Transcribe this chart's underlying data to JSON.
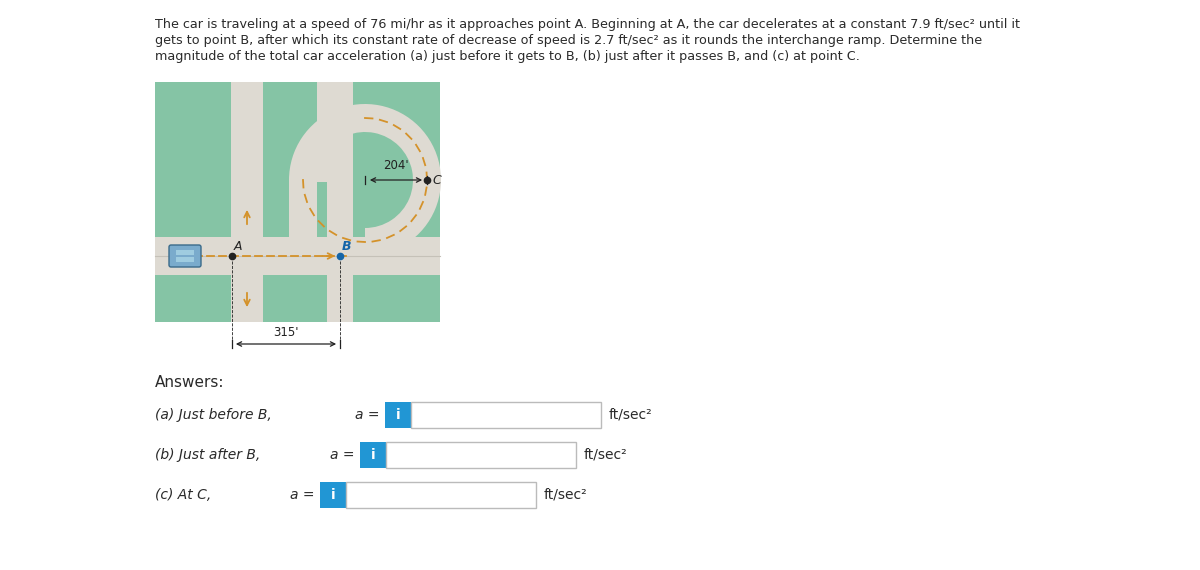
{
  "title_line1": "The car is traveling at a speed of 76 mi/hr as it approaches point A. Beginning at A, the car decelerates at a constant 7.9 ft/sec² until it",
  "title_line2": "gets to point B, after which its constant rate of decrease of speed is 2.7 ft/sec² as it rounds the interchange ramp. Determine the",
  "title_line3": "magnitude of the total car acceleration (a) just before it gets to B, (b) just after it passes B, and (c) at point C.",
  "green_color": "#85c4a5",
  "road_color": "#dedad2",
  "road_stripe": "#c5c1b8",
  "arrow_color": "#d4922a",
  "button_color": "#2196d4",
  "text_dark": "#2a2a2a",
  "text_medium": "#444444",
  "answer_labels": [
    "(a) Just before B,",
    "(b) Just after B,",
    "(c) At C,"
  ],
  "answers_label": "Answers:",
  "unit": "ft/sec²",
  "dim_315": "315'",
  "dim_204": "204'",
  "button_text": "i"
}
